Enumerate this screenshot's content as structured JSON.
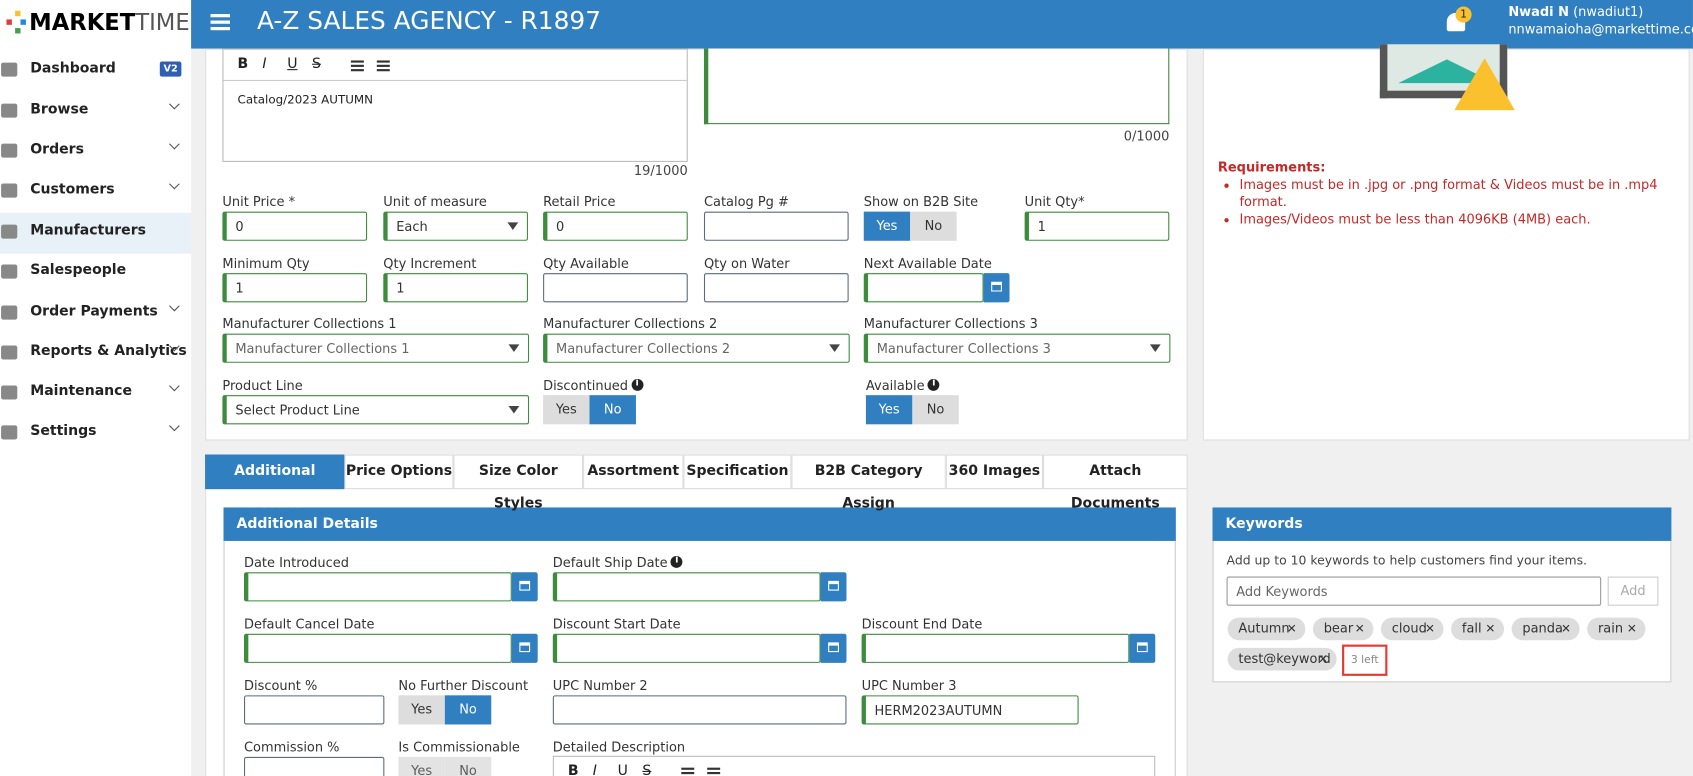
{
  "header": {
    "logo_a": "MARKET",
    "logo_b": "TIME",
    "title": "A-Z SALES AGENCY - R1897",
    "notifications": "1",
    "user_name": "Nwadi N",
    "user_id": "(nwadiut1)",
    "user_email": "nnwamaioha@markettime.com"
  },
  "sidebar": {
    "items": [
      "Dashboard",
      "Browse",
      "Orders",
      "Customers",
      "Manufacturers",
      "Salespeople",
      "Order Payments",
      "Reports & Analytics",
      "Maintenance",
      "Settings"
    ],
    "badge": "V2",
    "active": 4
  },
  "editor": {
    "toolbar": [
      "B",
      "I",
      "U",
      "S"
    ],
    "text": "Catalog/2023 AUTUMN",
    "counter": "19/1000"
  },
  "notes_counter": "0/1000",
  "product_fields": [
    {
      "type": "input",
      "label": "Unit Price *",
      "value": "0",
      "green": true
    },
    {
      "type": "select",
      "label": "Unit of measure",
      "value": "Each",
      "green": true
    },
    {
      "type": "input",
      "label": "Retail Price",
      "value": "0",
      "green": true
    },
    {
      "type": "input",
      "label": "Catalog Pg #"
    },
    {
      "type": "toggle",
      "label": "Show on B2B Site",
      "options": [
        "Yes",
        "No"
      ],
      "selected": 0
    },
    {
      "type": "input",
      "label": "Unit Qty*",
      "value": "1",
      "green": true
    },
    {
      "type": "input",
      "label": "Minimum Qty",
      "value": "1",
      "green": true
    },
    {
      "type": "input",
      "label": "Qty Increment",
      "value": "1",
      "green": true
    },
    {
      "type": "input",
      "label": "Qty Available"
    },
    {
      "type": "input",
      "label": "Qty on Water"
    },
    {
      "type": "date",
      "label": "Next Available Date",
      "green": true
    },
    {
      "type": "select",
      "label": "Manufacturer Collections 1",
      "placeholder": "Manufacturer Collections 1",
      "green": true
    },
    {
      "type": "select",
      "label": "Manufacturer Collections 2",
      "placeholder": "Manufacturer Collections 2",
      "green": true
    },
    {
      "type": "select",
      "label": "Manufacturer Collections 3",
      "placeholder": "Manufacturer Collections 3",
      "green": true
    },
    {
      "type": "select",
      "label": "Product Line",
      "value": "Select Product Line",
      "green": true
    },
    {
      "type": "toggle",
      "label": "Discontinued",
      "info": true,
      "options": [
        "Yes",
        "No"
      ],
      "selected": 1
    },
    {
      "type": "toggle",
      "label": "Available",
      "info": true,
      "options": [
        "Yes",
        "No"
      ],
      "selected": 0
    }
  ],
  "requirements": {
    "title": "Requirements:",
    "items": [
      "Images must be in .jpg or .png format & Videos must be in .mp4 format.",
      "Images/Videos must be less than 4096KB (4MB) each."
    ]
  },
  "tabs": {
    "items": [
      "Additional Details",
      "Price Options",
      "Size Color Styles",
      "Assortment",
      "Specification",
      "B2B Category Assign",
      "360 Images",
      "Attach Documents"
    ],
    "active": 0
  },
  "details": {
    "title": "Additional Details",
    "fields": [
      {
        "type": "date",
        "label": "Date Introduced",
        "green": true
      },
      {
        "type": "date",
        "label": "Default Ship Date",
        "info": true,
        "green": true
      },
      {
        "type": "date",
        "label": "Default Cancel Date",
        "green": true
      },
      {
        "type": "date",
        "label": "Discount Start Date",
        "green": true
      },
      {
        "type": "date",
        "label": "Discount End Date",
        "green": true
      },
      {
        "type": "input",
        "label": "Discount %"
      },
      {
        "type": "toggle",
        "label": "No Further Discount",
        "options": [
          "Yes",
          "No"
        ],
        "selected": 1
      },
      {
        "type": "input",
        "label": "UPC Number 2"
      },
      {
        "type": "input",
        "label": "UPC Number 3",
        "value": "HERM2023AUTUMN",
        "green": true
      },
      {
        "type": "input",
        "label": "Commission %"
      },
      {
        "type": "toggle",
        "label": "Is Commissionable",
        "options": [
          "Yes",
          "No"
        ],
        "disabled": true
      },
      {
        "type": "editor",
        "label": "Detailed Description",
        "toolbar": [
          "B",
          "I",
          "U",
          "S"
        ]
      }
    ]
  },
  "keywords": {
    "title": "Keywords",
    "hint": "Add up to 10 keywords to help customers find your items.",
    "placeholder": "Add Keywords",
    "button": "Add",
    "tags": [
      "Autumn",
      "bear",
      "cloud",
      "fall",
      "panda",
      "rain",
      "test@keyword"
    ],
    "remaining": "3 left"
  }
}
